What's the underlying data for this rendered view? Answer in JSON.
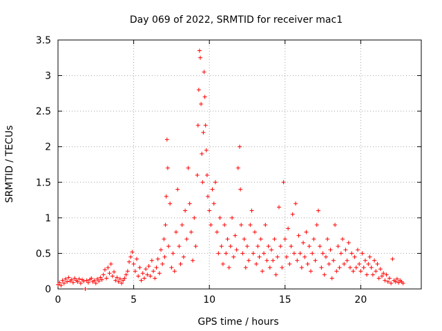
{
  "chart_data": {
    "type": "scatter",
    "title": "Day 069 of 2022, SRMTID for receiver mac1",
    "xlabel": "GPS time / hours",
    "ylabel": "SRMTID / TECUs",
    "xlim": [
      0,
      24
    ],
    "ylim": [
      0,
      3.5
    ],
    "x_ticks": [
      0,
      5,
      10,
      15,
      20
    ],
    "y_ticks": [
      0,
      0.5,
      1,
      1.5,
      2,
      2.5,
      3,
      3.5
    ],
    "x_tick_labels": [
      "0",
      "5",
      "10",
      "15",
      "20"
    ],
    "y_tick_labels": [
      "0",
      "0.5",
      "1",
      "1.5",
      "2",
      "2.5",
      "3",
      "3.5"
    ],
    "grid": true,
    "marker": "+",
    "color": "#ff0000",
    "series": [
      {
        "name": "SRMTID",
        "points": [
          [
            0.0,
            0.06
          ],
          [
            0.1,
            0.09
          ],
          [
            0.2,
            0.05
          ],
          [
            0.3,
            0.12
          ],
          [
            0.4,
            0.08
          ],
          [
            0.5,
            0.14
          ],
          [
            0.6,
            0.1
          ],
          [
            0.7,
            0.16
          ],
          [
            0.8,
            0.11
          ],
          [
            0.9,
            0.13
          ],
          [
            1.0,
            0.09
          ],
          [
            1.1,
            0.15
          ],
          [
            1.2,
            0.12
          ],
          [
            1.3,
            0.1
          ],
          [
            1.4,
            0.14
          ],
          [
            1.5,
            0.08
          ],
          [
            1.6,
            0.13
          ],
          [
            1.7,
            0.11
          ],
          [
            1.8,
            0.0
          ],
          [
            1.9,
            0.12
          ],
          [
            2.0,
            0.09
          ],
          [
            2.1,
            0.13
          ],
          [
            2.2,
            0.15
          ],
          [
            2.3,
            0.1
          ],
          [
            2.4,
            0.12
          ],
          [
            2.5,
            0.08
          ],
          [
            2.6,
            0.14
          ],
          [
            2.7,
            0.11
          ],
          [
            2.8,
            0.16
          ],
          [
            2.9,
            0.13
          ],
          [
            3.0,
            0.2
          ],
          [
            3.1,
            0.27
          ],
          [
            3.2,
            0.15
          ],
          [
            3.3,
            0.3
          ],
          [
            3.4,
            0.22
          ],
          [
            3.5,
            0.35
          ],
          [
            3.6,
            0.18
          ],
          [
            3.7,
            0.24
          ],
          [
            3.8,
            0.12
          ],
          [
            3.9,
            0.16
          ],
          [
            4.0,
            0.1
          ],
          [
            4.1,
            0.14
          ],
          [
            4.2,
            0.08
          ],
          [
            4.3,
            0.12
          ],
          [
            4.4,
            0.15
          ],
          [
            4.5,
            0.2
          ],
          [
            4.6,
            0.25
          ],
          [
            4.7,
            0.38
          ],
          [
            4.8,
            0.45
          ],
          [
            4.9,
            0.52
          ],
          [
            5.0,
            0.35
          ],
          [
            5.1,
            0.25
          ],
          [
            5.2,
            0.42
          ],
          [
            5.3,
            0.18
          ],
          [
            5.4,
            0.3
          ],
          [
            5.5,
            0.12
          ],
          [
            5.6,
            0.22
          ],
          [
            5.7,
            0.15
          ],
          [
            5.8,
            0.28
          ],
          [
            5.9,
            0.2
          ],
          [
            6.0,
            0.32
          ],
          [
            6.1,
            0.18
          ],
          [
            6.2,
            0.4
          ],
          [
            6.3,
            0.25
          ],
          [
            6.4,
            0.15
          ],
          [
            6.5,
            0.3
          ],
          [
            6.6,
            0.42
          ],
          [
            6.7,
            0.22
          ],
          [
            6.8,
            0.55
          ],
          [
            6.9,
            0.35
          ],
          [
            7.0,
            0.7
          ],
          [
            7.05,
            0.45
          ],
          [
            7.1,
            0.9
          ],
          [
            7.15,
            1.3
          ],
          [
            7.2,
            2.1
          ],
          [
            7.25,
            1.7
          ],
          [
            7.3,
            0.6
          ],
          [
            7.4,
            1.2
          ],
          [
            7.5,
            0.3
          ],
          [
            7.6,
            0.5
          ],
          [
            7.7,
            0.25
          ],
          [
            7.8,
            0.8
          ],
          [
            7.9,
            1.4
          ],
          [
            8.0,
            0.6
          ],
          [
            8.1,
            0.35
          ],
          [
            8.2,
            0.9
          ],
          [
            8.3,
            0.45
          ],
          [
            8.4,
            1.1
          ],
          [
            8.5,
            0.7
          ],
          [
            8.6,
            1.7
          ],
          [
            8.7,
            1.2
          ],
          [
            8.8,
            0.8
          ],
          [
            8.9,
            0.4
          ],
          [
            9.0,
            1.0
          ],
          [
            9.1,
            0.6
          ],
          [
            9.2,
            1.6
          ],
          [
            9.25,
            2.3
          ],
          [
            9.3,
            2.8
          ],
          [
            9.35,
            3.35
          ],
          [
            9.4,
            3.25
          ],
          [
            9.45,
            2.6
          ],
          [
            9.5,
            1.9
          ],
          [
            9.55,
            1.5
          ],
          [
            9.6,
            2.2
          ],
          [
            9.65,
            3.05
          ],
          [
            9.7,
            2.7
          ],
          [
            9.75,
            2.3
          ],
          [
            9.8,
            1.95
          ],
          [
            9.85,
            1.6
          ],
          [
            9.9,
            1.3
          ],
          [
            10.0,
            1.1
          ],
          [
            10.1,
            0.9
          ],
          [
            10.2,
            1.4
          ],
          [
            10.3,
            1.2
          ],
          [
            10.4,
            1.5
          ],
          [
            10.5,
            0.8
          ],
          [
            10.6,
            0.5
          ],
          [
            10.7,
            1.0
          ],
          [
            10.8,
            0.6
          ],
          [
            10.9,
            0.35
          ],
          [
            11.0,
            0.9
          ],
          [
            11.1,
            0.5
          ],
          [
            11.2,
            0.7
          ],
          [
            11.3,
            0.3
          ],
          [
            11.4,
            0.6
          ],
          [
            11.5,
            1.0
          ],
          [
            11.6,
            0.45
          ],
          [
            11.7,
            0.75
          ],
          [
            11.8,
            0.55
          ],
          [
            11.9,
            1.7
          ],
          [
            12.0,
            2.0
          ],
          [
            12.05,
            1.4
          ],
          [
            12.1,
            0.9
          ],
          [
            12.2,
            0.5
          ],
          [
            12.3,
            0.7
          ],
          [
            12.4,
            0.3
          ],
          [
            12.5,
            0.6
          ],
          [
            12.6,
            0.4
          ],
          [
            12.7,
            0.9
          ],
          [
            12.8,
            1.1
          ],
          [
            12.9,
            0.5
          ],
          [
            13.0,
            0.8
          ],
          [
            13.1,
            0.35
          ],
          [
            13.2,
            0.6
          ],
          [
            13.3,
            0.45
          ],
          [
            13.4,
            0.7
          ],
          [
            13.5,
            0.25
          ],
          [
            13.6,
            0.5
          ],
          [
            13.7,
            0.9
          ],
          [
            13.8,
            0.4
          ],
          [
            13.9,
            0.6
          ],
          [
            14.0,
            0.3
          ],
          [
            14.1,
            0.55
          ],
          [
            14.2,
            0.4
          ],
          [
            14.3,
            0.7
          ],
          [
            14.4,
            0.2
          ],
          [
            14.5,
            0.45
          ],
          [
            14.6,
            1.15
          ],
          [
            14.7,
            0.6
          ],
          [
            14.8,
            0.3
          ],
          [
            14.9,
            1.5
          ],
          [
            15.0,
            0.7
          ],
          [
            15.1,
            0.45
          ],
          [
            15.2,
            0.85
          ],
          [
            15.3,
            0.35
          ],
          [
            15.4,
            0.6
          ],
          [
            15.5,
            1.05
          ],
          [
            15.6,
            0.5
          ],
          [
            15.7,
            1.2
          ],
          [
            15.8,
            0.4
          ],
          [
            15.9,
            0.75
          ],
          [
            16.0,
            0.5
          ],
          [
            16.1,
            0.3
          ],
          [
            16.2,
            0.65
          ],
          [
            16.3,
            0.45
          ],
          [
            16.4,
            0.8
          ],
          [
            16.5,
            0.35
          ],
          [
            16.6,
            0.6
          ],
          [
            16.7,
            0.25
          ],
          [
            16.8,
            0.5
          ],
          [
            16.9,
            0.7
          ],
          [
            17.0,
            0.4
          ],
          [
            17.1,
            0.9
          ],
          [
            17.2,
            1.1
          ],
          [
            17.3,
            0.6
          ],
          [
            17.4,
            0.3
          ],
          [
            17.5,
            0.5
          ],
          [
            17.6,
            0.2
          ],
          [
            17.7,
            0.45
          ],
          [
            17.8,
            0.7
          ],
          [
            17.9,
            0.35
          ],
          [
            18.0,
            0.55
          ],
          [
            18.1,
            0.15
          ],
          [
            18.2,
            0.4
          ],
          [
            18.3,
            0.9
          ],
          [
            18.4,
            0.25
          ],
          [
            18.5,
            0.6
          ],
          [
            18.6,
            0.3
          ],
          [
            18.7,
            0.5
          ],
          [
            18.8,
            0.7
          ],
          [
            18.9,
            0.35
          ],
          [
            19.0,
            0.55
          ],
          [
            19.1,
            0.4
          ],
          [
            19.2,
            0.65
          ],
          [
            19.3,
            0.3
          ],
          [
            19.4,
            0.5
          ],
          [
            19.5,
            0.25
          ],
          [
            19.6,
            0.45
          ],
          [
            19.7,
            0.3
          ],
          [
            19.8,
            0.55
          ],
          [
            19.9,
            0.35
          ],
          [
            20.0,
            0.25
          ],
          [
            20.1,
            0.5
          ],
          [
            20.2,
            0.3
          ],
          [
            20.3,
            0.4
          ],
          [
            20.4,
            0.2
          ],
          [
            20.5,
            0.35
          ],
          [
            20.6,
            0.45
          ],
          [
            20.7,
            0.3
          ],
          [
            20.8,
            0.2
          ],
          [
            20.9,
            0.4
          ],
          [
            21.0,
            0.25
          ],
          [
            21.1,
            0.35
          ],
          [
            21.2,
            0.15
          ],
          [
            21.3,
            0.28
          ],
          [
            21.4,
            0.18
          ],
          [
            21.5,
            0.22
          ],
          [
            21.6,
            0.12
          ],
          [
            21.7,
            0.2
          ],
          [
            21.8,
            0.1
          ],
          [
            21.9,
            0.15
          ],
          [
            22.0,
            0.08
          ],
          [
            22.1,
            0.42
          ],
          [
            22.2,
            0.12
          ],
          [
            22.3,
            0.1
          ],
          [
            22.4,
            0.14
          ],
          [
            22.5,
            0.09
          ],
          [
            22.6,
            0.12
          ],
          [
            22.7,
            0.1
          ],
          [
            22.8,
            0.08
          ]
        ]
      }
    ]
  }
}
